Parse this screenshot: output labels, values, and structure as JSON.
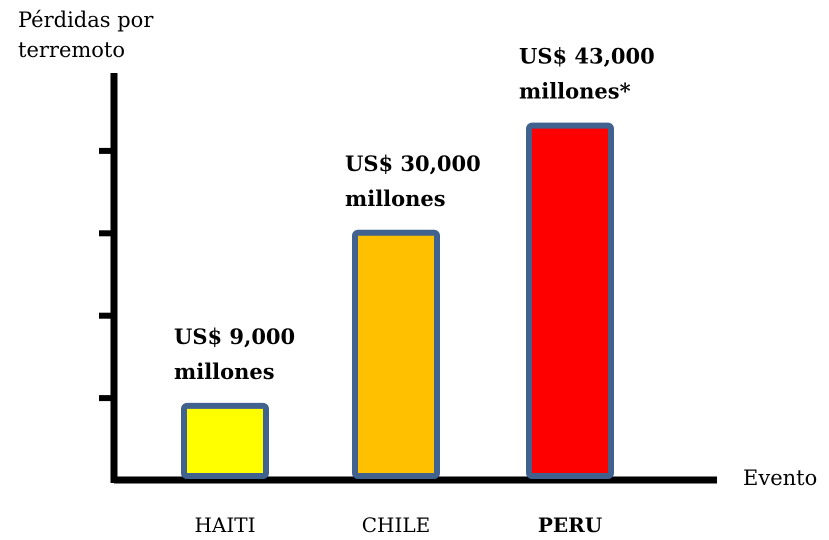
{
  "chart_data": {
    "type": "bar",
    "ylabel": [
      "Pérdidas por",
      "terremoto"
    ],
    "xlabel": "Evento",
    "categories": [
      "HAITI",
      "CHILE",
      "PERU"
    ],
    "category_bold": [
      false,
      false,
      true
    ],
    "values": [
      9000,
      30000,
      43000
    ],
    "unit": "US$ millones",
    "data_labels": [
      [
        "US$ 9,000",
        "millones"
      ],
      [
        "US$ 30,000",
        "millones"
      ],
      [
        "US$ 43,000",
        "millones*"
      ]
    ],
    "colors": [
      "#ffff00",
      "#ffc000",
      "#ff0000"
    ],
    "bar_border_color": "#41618f",
    "ylim": [
      0,
      50000
    ],
    "y_ticks": 5,
    "grid": false,
    "legend": "none"
  }
}
